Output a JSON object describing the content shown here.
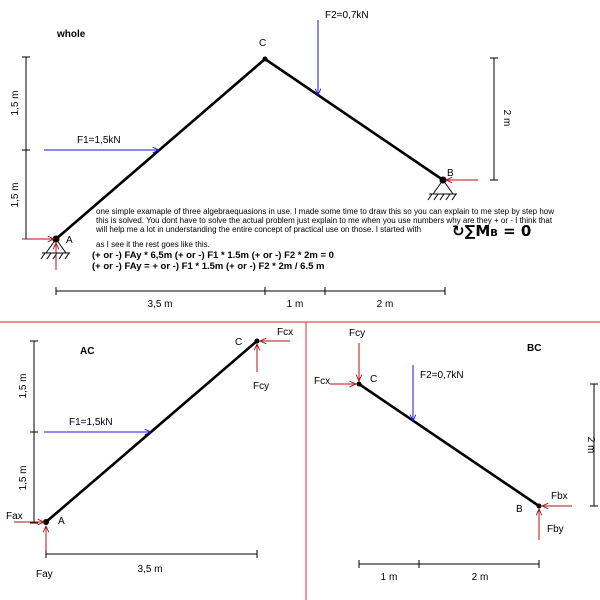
{
  "labels": {
    "whole": "whole",
    "ac": "AC",
    "bc": "BC",
    "node_a": "A",
    "node_b": "B",
    "node_c": "C",
    "f1": "F1=1,5kN",
    "f2": "F2=0,7kN",
    "fax": "Fax",
    "fay": "Fay",
    "fcx": "Fcx",
    "fcy": "Fcy",
    "fbx": "Fbx",
    "fby": "Fby",
    "dim_15": "1,5 m",
    "dim_2": "2 m",
    "dim_35": "3,5 m",
    "dim_1": "1 m"
  },
  "question": {
    "line1": "one simple examaple of three algebraequasions in use. I made some time to draw this so you can explain to me step by step how",
    "line2": "this is solved. You dont have to solve the actual problem just explain to me when you use numbers why are they + or - I think that",
    "line3": "will help me a lot in understanding the entire concept of practical use on those. I started with",
    "line4": "as I see it the rest goes like this."
  },
  "moment_eq": {
    "prefix": "↻∑",
    "m": "M",
    "sub": "B",
    "rest": " = 0"
  },
  "equations": {
    "eq1": "(+ or -) FAy * 6,5m (+ or -) F1 * 1.5m  (+ or -) F2 * 2m = 0",
    "eq2": "(+ or -) FAy = + or -) F1 * 1.5m  (+ or -) F2 * 2m / 6.5 m"
  },
  "colors": {
    "member": "#000000",
    "force": "#1a1ad0",
    "reaction": "#b01010",
    "divider": "#e05050",
    "dim": "#000000"
  }
}
